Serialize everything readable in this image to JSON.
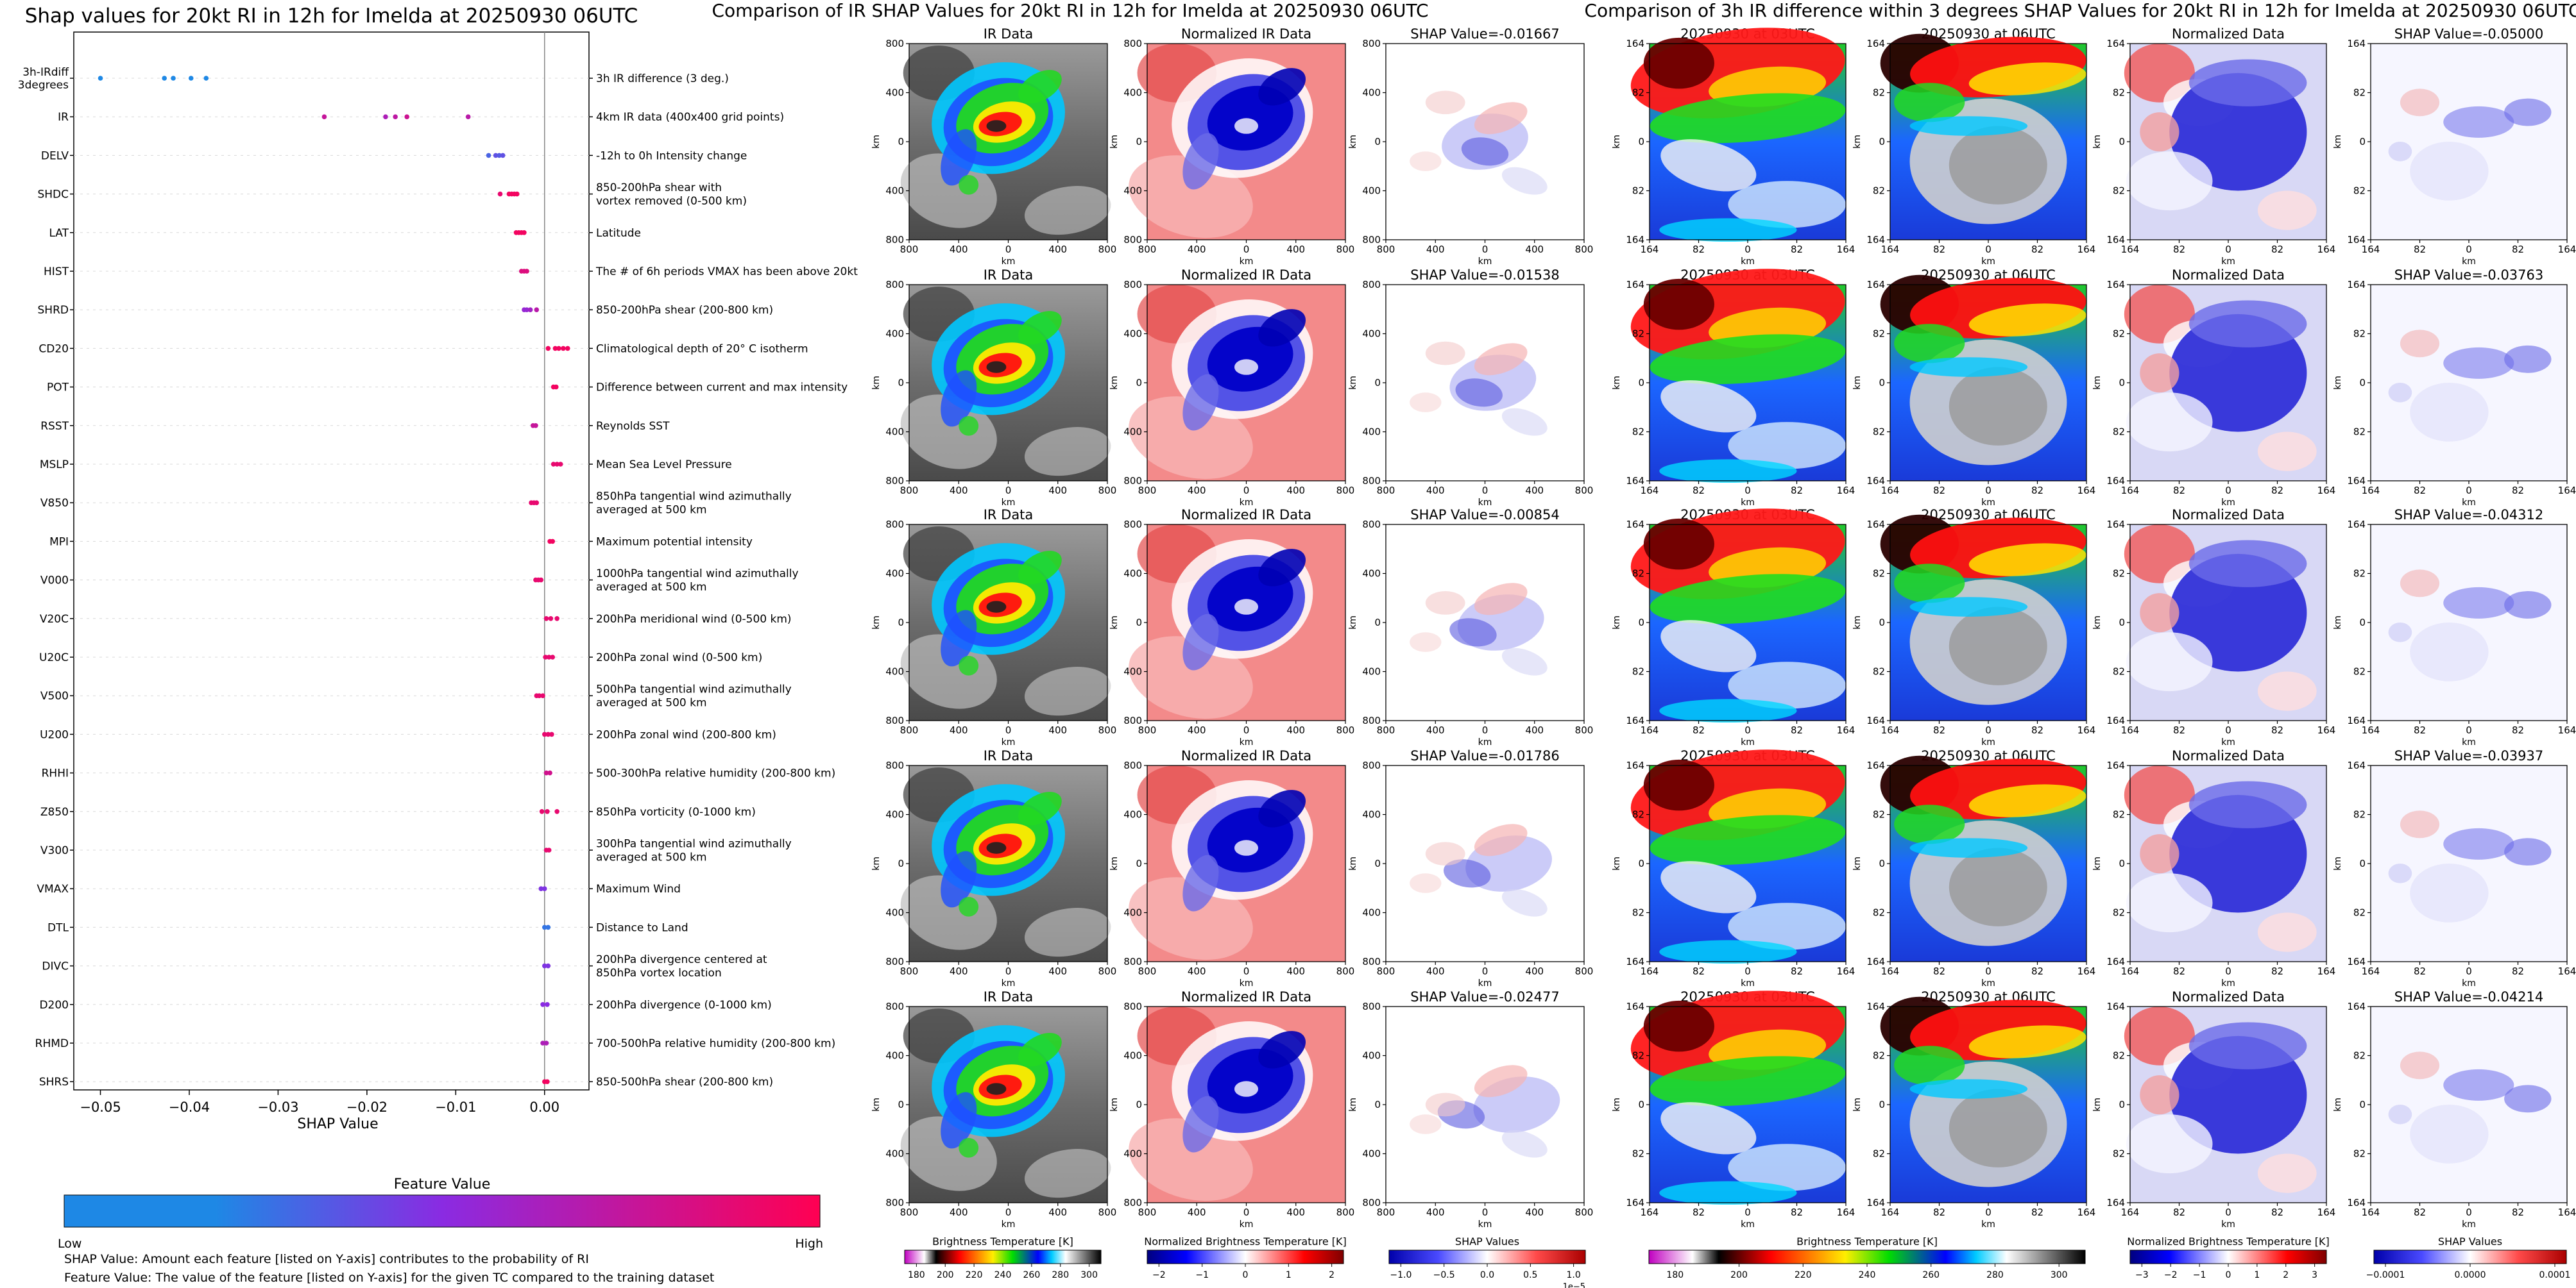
{
  "shap_panel": {
    "title": "Shap values for 20kt RI in 12h for Imelda at 20250930 06UTC",
    "xlabel": "SHAP Value",
    "legend_title": "Feature Value",
    "legend_low": "Low",
    "legend_high": "High",
    "note1": "SHAP Value: Amount each feature [listed on Y-axis] contributes to the probability of RI",
    "note2": "Feature Value: The value of the feature [listed on Y-axis] for the given TC compared to the training dataset",
    "colors": {
      "low": "#1e88e5",
      "mid": "#8a2be2",
      "high": "#ff0052"
    }
  },
  "ir_panel": {
    "title": "Comparison of IR SHAP Values for 20kt RI in 12h for Imelda at 20250930 06UTC",
    "col_titles": [
      "IR Data",
      "Normalized IR Data"
    ],
    "shap_titles": [
      "SHAP Value=-0.01667",
      "SHAP Value=-0.01538",
      "SHAP Value=-0.00854",
      "SHAP Value=-0.01786",
      "SHAP Value=-0.02477"
    ],
    "axis_label": "km",
    "ticks": [
      "800",
      "400",
      "0",
      "400",
      "800"
    ],
    "colorbars": [
      {
        "label": "Brightness Temperature [K]",
        "ticks": [
          "180",
          "200",
          "220",
          "240",
          "260",
          "280",
          "300"
        ]
      },
      {
        "label": "Normalized Brightness Temperature [K]",
        "ticks": [
          "−2",
          "−1",
          "0",
          "1",
          "2"
        ]
      },
      {
        "label": "SHAP Values",
        "ticks": [
          "−1.0",
          "−0.5",
          "0.0",
          "0.5",
          "1.0"
        ],
        "offset": "1e−5"
      }
    ]
  },
  "diff_panel": {
    "title": "Comparison of 3h IR difference within 3 degrees SHAP Values for 20kt RI in 12h for Imelda at 20250930 06UTC",
    "col_titles": [
      "20250930 at 03UTC",
      "20250930 at 06UTC",
      "Normalized Data"
    ],
    "shap_titles": [
      "SHAP Value=-0.05000",
      "SHAP Value=-0.03763",
      "SHAP Value=-0.04312",
      "SHAP Value=-0.03937",
      "SHAP Value=-0.04214"
    ],
    "axis_label": "km",
    "ticks": [
      "164",
      "82",
      "0",
      "82",
      "164"
    ],
    "colorbars": [
      {
        "label": "Brightness Temperature [K]",
        "ticks": [
          "180",
          "200",
          "220",
          "240",
          "260",
          "280",
          "300"
        ]
      },
      {
        "label": "Normalized Brightness Temperature [K]",
        "ticks": [
          "−3",
          "−2",
          "−1",
          "0",
          "1",
          "2",
          "3"
        ]
      },
      {
        "label": "SHAP Values",
        "ticks": [
          "−0.0001",
          "0.0000",
          "0.0001"
        ]
      }
    ]
  },
  "chart_data": {
    "type": "scatter",
    "title": "Shap values for 20kt RI in 12h for Imelda at 20250930 06UTC",
    "xlabel": "SHAP Value",
    "xlim": [
      -0.053,
      0.005
    ],
    "xticks": [
      -0.05,
      -0.04,
      -0.03,
      -0.02,
      -0.01,
      0.0
    ],
    "xtick_labels": [
      "−0.05",
      "−0.04",
      "−0.03",
      "−0.02",
      "−0.01",
      "0.00"
    ],
    "colorbar": {
      "title": "Feature Value",
      "low": "Low",
      "high": "High"
    },
    "features": [
      {
        "name": "3h-IRdiff\n3degrees",
        "desc": "3h IR difference (3 deg.)",
        "points": [
          [
            -0.05,
            0.0
          ],
          [
            -0.0428,
            0.0
          ],
          [
            -0.0418,
            0.0
          ],
          [
            -0.0398,
            0.0
          ],
          [
            -0.0381,
            0.0
          ]
        ]
      },
      {
        "name": "IR",
        "desc": "4km IR data (400x400 grid points)",
        "points": [
          [
            -0.0248,
            0.75
          ],
          [
            -0.0179,
            0.65
          ],
          [
            -0.0168,
            0.72
          ],
          [
            -0.0155,
            0.78
          ],
          [
            -0.0086,
            0.7
          ]
        ]
      },
      {
        "name": "DELV",
        "desc": "-12h to 0h Intensity change",
        "points": [
          [
            -0.0063,
            0.2
          ],
          [
            -0.0055,
            0.3
          ],
          [
            -0.0051,
            0.25
          ],
          [
            -0.0047,
            0.3
          ]
        ]
      },
      {
        "name": "SHDC",
        "desc": "850-200hPa shear with\nvortex removed (0-500 km)",
        "points": [
          [
            -0.005,
            0.9
          ],
          [
            -0.004,
            0.95
          ],
          [
            -0.0037,
            0.95
          ],
          [
            -0.0034,
            0.95
          ],
          [
            -0.0031,
            0.95
          ]
        ]
      },
      {
        "name": "LAT",
        "desc": "Latitude",
        "points": [
          [
            -0.0032,
            0.95
          ],
          [
            -0.0029,
            0.95
          ],
          [
            -0.0026,
            0.95
          ],
          [
            -0.0023,
            0.95
          ]
        ]
      },
      {
        "name": "HIST",
        "desc": "The # of 6h periods VMAX has been above 20kt",
        "points": [
          [
            -0.0026,
            0.85
          ],
          [
            -0.0023,
            0.85
          ],
          [
            -0.002,
            0.85
          ]
        ]
      },
      {
        "name": "SHRD",
        "desc": "850-200hPa shear (200-800 km)",
        "points": [
          [
            -0.0023,
            0.55
          ],
          [
            -0.002,
            0.55
          ],
          [
            -0.0016,
            0.6
          ],
          [
            -0.0009,
            0.7
          ]
        ]
      },
      {
        "name": "CD20",
        "desc": "Climatological depth of 20° C isotherm",
        "points": [
          [
            0.0004,
            0.95
          ],
          [
            0.0012,
            0.95
          ],
          [
            0.0016,
            0.95
          ],
          [
            0.0021,
            0.95
          ],
          [
            0.0026,
            0.95
          ]
        ]
      },
      {
        "name": "POT",
        "desc": "Difference between current and max intensity",
        "points": [
          [
            0.001,
            0.95
          ],
          [
            0.0013,
            0.95
          ]
        ]
      },
      {
        "name": "RSST",
        "desc": "Reynolds SST",
        "points": [
          [
            -0.0013,
            0.75
          ],
          [
            -0.001,
            0.75
          ]
        ]
      },
      {
        "name": "MSLP",
        "desc": "Mean Sea Level Pressure",
        "points": [
          [
            0.001,
            0.9
          ],
          [
            0.0014,
            0.9
          ],
          [
            0.0018,
            0.9
          ]
        ]
      },
      {
        "name": "V850",
        "desc": "850hPa tangential wind azimuthally\naveraged at 500 km",
        "points": [
          [
            -0.0015,
            0.9
          ],
          [
            -0.0012,
            0.9
          ],
          [
            -0.0009,
            0.9
          ]
        ]
      },
      {
        "name": "MPI",
        "desc": "Maximum potential intensity",
        "points": [
          [
            0.0006,
            0.95
          ],
          [
            0.0009,
            0.95
          ]
        ]
      },
      {
        "name": "V000",
        "desc": "1000hPa tangential wind azimuthally\naveraged at 500 km",
        "points": [
          [
            -0.001,
            0.9
          ],
          [
            -0.0007,
            0.9
          ],
          [
            -0.0004,
            0.9
          ]
        ]
      },
      {
        "name": "V20C",
        "desc": "200hPa meridional wind (0-500 km)",
        "points": [
          [
            0.0002,
            0.9
          ],
          [
            0.0007,
            0.9
          ],
          [
            0.0014,
            0.9
          ]
        ]
      },
      {
        "name": "U20C",
        "desc": "200hPa zonal wind (0-500 km)",
        "points": [
          [
            0.0001,
            0.9
          ],
          [
            0.0005,
            0.9
          ],
          [
            0.0009,
            0.9
          ]
        ]
      },
      {
        "name": "V500",
        "desc": "500hPa tangential wind azimuthally\naveraged at 500 km",
        "points": [
          [
            -0.0009,
            0.9
          ],
          [
            -0.0006,
            0.9
          ],
          [
            -0.0002,
            0.9
          ]
        ]
      },
      {
        "name": "U200",
        "desc": "200hPa zonal wind (200-800 km)",
        "points": [
          [
            0.0,
            0.9
          ],
          [
            0.0004,
            0.9
          ],
          [
            0.0008,
            0.9
          ]
        ]
      },
      {
        "name": "RHHI",
        "desc": "500-300hPa relative humidity (200-800 km)",
        "points": [
          [
            0.0002,
            0.8
          ],
          [
            0.0006,
            0.8
          ]
        ]
      },
      {
        "name": "Z850",
        "desc": "850hPa vorticity (0-1000 km)",
        "points": [
          [
            -0.0003,
            0.9
          ],
          [
            0.0003,
            0.9
          ],
          [
            0.0014,
            0.9
          ]
        ]
      },
      {
        "name": "V300",
        "desc": "300hPa tangential wind azimuthally\naveraged at 500 km",
        "points": [
          [
            0.0002,
            0.9
          ],
          [
            0.0005,
            0.9
          ]
        ]
      },
      {
        "name": "VMAX",
        "desc": "Maximum Wind",
        "points": [
          [
            -0.0004,
            0.45
          ],
          [
            0.0,
            0.45
          ]
        ]
      },
      {
        "name": "DTL",
        "desc": "Distance to Land",
        "points": [
          [
            0.0,
            0.1
          ],
          [
            0.0004,
            0.1
          ]
        ]
      },
      {
        "name": "DIVC",
        "desc": "200hPa divergence centered at\n850hPa vortex location",
        "points": [
          [
            0.0,
            0.45
          ],
          [
            0.0004,
            0.45
          ]
        ]
      },
      {
        "name": "D200",
        "desc": "200hPa divergence (0-1000 km)",
        "points": [
          [
            -0.0002,
            0.5
          ],
          [
            0.0003,
            0.5
          ]
        ]
      },
      {
        "name": "RHMD",
        "desc": "700-500hPa relative humidity (200-800 km)",
        "points": [
          [
            -0.0002,
            0.65
          ],
          [
            0.0002,
            0.65
          ]
        ]
      },
      {
        "name": "SHRS",
        "desc": "850-500hPa shear (200-800 km)",
        "points": [
          [
            0.0,
            0.95
          ],
          [
            0.0003,
            0.95
          ]
        ]
      }
    ]
  }
}
